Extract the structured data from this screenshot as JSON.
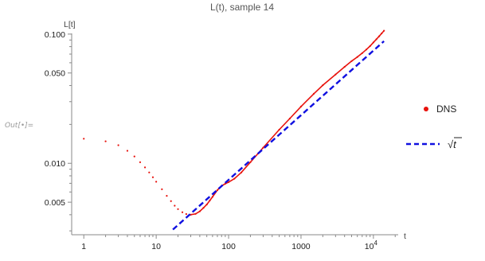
{
  "cell": {
    "out_label": "Out[•]="
  },
  "chart_data": {
    "type": "scatter",
    "title": "L(t), sample 14",
    "xlabel": "t",
    "ylabel": "L[t]",
    "x_scale": "log",
    "y_scale": "log",
    "xlim": [
      0.68,
      22000
    ],
    "ylim": [
      0.0028,
      0.12
    ],
    "x_ticks": [
      {
        "value": 1,
        "label": "1"
      },
      {
        "value": 10,
        "label": "10"
      },
      {
        "value": 100,
        "label": "100"
      },
      {
        "value": 1000,
        "label": "1000"
      },
      {
        "value": 10000,
        "label": "10",
        "sup": "4"
      }
    ],
    "y_ticks": [
      {
        "value": 0.005,
        "label": "0.005"
      },
      {
        "value": 0.01,
        "label": "0.010"
      },
      {
        "value": 0.05,
        "label": "0.050"
      },
      {
        "value": 0.1,
        "label": "0.100"
      }
    ],
    "grid": false,
    "legend_position": "right",
    "series": [
      {
        "name": "DNS",
        "style": "points",
        "color": "#e8120c",
        "points": [
          [
            1,
            0.0155
          ],
          [
            2,
            0.0148
          ],
          [
            3,
            0.0138
          ],
          [
            4,
            0.0125
          ],
          [
            5,
            0.0113
          ],
          [
            6,
            0.0102
          ],
          [
            7,
            0.0093
          ],
          [
            8,
            0.0085
          ],
          [
            9,
            0.0078
          ],
          [
            10,
            0.0072
          ],
          [
            12,
            0.0063
          ],
          [
            14,
            0.0056
          ],
          [
            16,
            0.0051
          ],
          [
            18,
            0.0047
          ],
          [
            20,
            0.00442
          ],
          [
            23,
            0.00418
          ],
          [
            26,
            0.00405
          ],
          [
            30,
            0.004
          ],
          [
            35,
            0.00406
          ],
          [
            40,
            0.00425
          ],
          [
            45,
            0.00452
          ],
          [
            50,
            0.0048
          ],
          [
            55,
            0.00515
          ],
          [
            60,
            0.0055
          ],
          [
            70,
            0.0062
          ],
          [
            80,
            0.00668
          ],
          [
            90,
            0.00695
          ],
          [
            100,
            0.00715
          ],
          [
            120,
            0.0076
          ],
          [
            150,
            0.0085
          ],
          [
            200,
            0.0102
          ],
          [
            300,
            0.0132
          ],
          [
            500,
            0.0182
          ],
          [
            700,
            0.0222
          ],
          [
            1000,
            0.0275
          ],
          [
            1500,
            0.0345
          ],
          [
            2000,
            0.0402
          ],
          [
            3000,
            0.0487
          ],
          [
            4000,
            0.0558
          ],
          [
            5000,
            0.0618
          ],
          [
            6000,
            0.0665
          ],
          [
            7000,
            0.0712
          ],
          [
            8000,
            0.076
          ],
          [
            9000,
            0.0808
          ],
          [
            10000,
            0.0862
          ],
          [
            11000,
            0.0912
          ],
          [
            12000,
            0.0962
          ],
          [
            13000,
            0.1012
          ],
          [
            14000,
            0.1062
          ]
        ]
      },
      {
        "name": "√t",
        "style": "dashed-line",
        "color": "#1010e0",
        "formula": "0.000745*sqrt(t)",
        "points": [
          [
            17,
            0.00307
          ],
          [
            30,
            0.00408
          ],
          [
            50,
            0.00527
          ],
          [
            100,
            0.00745
          ],
          [
            200,
            0.01054
          ],
          [
            500,
            0.01666
          ],
          [
            1000,
            0.02356
          ],
          [
            2000,
            0.03332
          ],
          [
            5000,
            0.05268
          ],
          [
            10000,
            0.0745
          ],
          [
            14000,
            0.08815
          ]
        ]
      }
    ]
  }
}
